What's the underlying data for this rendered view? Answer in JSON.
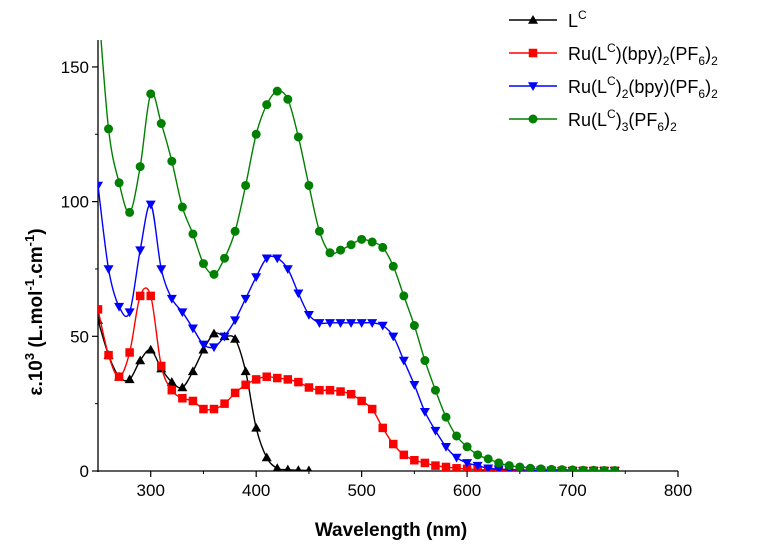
{
  "chart_data": {
    "type": "line",
    "xlabel": "Wavelength (nm)",
    "ylabel_base": "ε.10",
    "ylabel_exp": "3",
    "ylabel_rest": " (L.mol",
    "ylabel_exp2": "-1",
    "ylabel_rest2": ".cm",
    "ylabel_exp3": "-1",
    "ylabel_end": ")",
    "xlim": [
      250,
      800
    ],
    "ylim": [
      0,
      160
    ],
    "xticks": [
      300,
      400,
      500,
      600,
      700,
      800
    ],
    "yticks": [
      0,
      50,
      100,
      150
    ],
    "grid": false,
    "legend_position": "top-right",
    "legend": [
      {
        "parts": [
          [
            "n",
            "L"
          ],
          [
            "sup",
            "C"
          ]
        ]
      },
      {
        "parts": [
          [
            "n",
            "Ru(L"
          ],
          [
            "sup",
            "C"
          ],
          [
            "n",
            ")(bpy)"
          ],
          [
            "sub",
            "2"
          ],
          [
            "n",
            "(PF"
          ],
          [
            "sub",
            "6"
          ],
          [
            "n",
            ")"
          ],
          [
            "sub",
            "2"
          ]
        ]
      },
      {
        "parts": [
          [
            "n",
            "Ru(L"
          ],
          [
            "sup",
            "C"
          ],
          [
            "n",
            ")"
          ],
          [
            "sub",
            "2"
          ],
          [
            "n",
            "(bpy)(PF"
          ],
          [
            "sub",
            "6"
          ],
          [
            "n",
            ")"
          ],
          [
            "sub",
            "2"
          ]
        ]
      },
      {
        "parts": [
          [
            "n",
            "Ru(L"
          ],
          [
            "sup",
            "C"
          ],
          [
            "n",
            ")"
          ],
          [
            "sub",
            "3"
          ],
          [
            "n",
            "(PF"
          ],
          [
            "sub",
            "6"
          ],
          [
            "n",
            ")"
          ],
          [
            "sub",
            "2"
          ]
        ]
      }
    ],
    "series": [
      {
        "color": "#000000",
        "marker": "triangle-up",
        "x": [
          250,
          260,
          270,
          280,
          290,
          300,
          310,
          320,
          330,
          340,
          350,
          360,
          370,
          380,
          390,
          400,
          410,
          420,
          430,
          440,
          450
        ],
        "y": [
          56,
          43,
          35,
          34,
          41,
          45,
          38,
          33,
          31,
          37,
          45,
          51,
          50,
          49,
          37,
          16,
          5,
          1,
          0.5,
          0.3,
          0.2
        ]
      },
      {
        "color": "#ff0000",
        "marker": "square",
        "x": [
          250,
          260,
          270,
          280,
          290,
          300,
          310,
          320,
          330,
          340,
          350,
          360,
          370,
          380,
          390,
          400,
          410,
          420,
          430,
          440,
          450,
          460,
          470,
          480,
          490,
          500,
          510,
          520,
          530,
          540,
          550,
          560,
          570,
          580,
          590,
          600,
          610,
          620,
          630,
          640,
          650,
          660,
          670,
          680,
          690,
          700,
          710,
          720,
          730,
          740
        ],
        "y": [
          60,
          43,
          35,
          44,
          65,
          65,
          39,
          30,
          27,
          26,
          23,
          23,
          25,
          29,
          32,
          34,
          35,
          34.5,
          34,
          33,
          31,
          30,
          30,
          29.5,
          28.5,
          26,
          23,
          16,
          10,
          6,
          4,
          3,
          2,
          1.5,
          1,
          0.8,
          0.5,
          0.4,
          0.3,
          0.2,
          0.2,
          0.2,
          0.2,
          0.1,
          0.1,
          0.1,
          0.1,
          0.1,
          0.1,
          0.1
        ]
      },
      {
        "color": "#0000ff",
        "marker": "triangle-down",
        "x": [
          250,
          260,
          270,
          280,
          290,
          300,
          310,
          320,
          330,
          340,
          350,
          360,
          370,
          380,
          390,
          400,
          410,
          420,
          430,
          440,
          450,
          460,
          470,
          480,
          490,
          500,
          510,
          520,
          530,
          540,
          550,
          560,
          570,
          580,
          590,
          600,
          610,
          620,
          630,
          640,
          650,
          660,
          670,
          680,
          690,
          700,
          710,
          720,
          730,
          740
        ],
        "y": [
          106,
          75,
          61,
          59,
          82,
          99,
          75,
          64,
          59,
          53,
          47,
          46,
          50,
          56,
          64,
          72,
          79,
          79,
          75,
          66,
          58,
          55,
          55,
          55,
          55,
          55,
          55,
          54,
          50,
          41,
          32,
          22,
          15,
          9,
          5,
          3,
          2,
          1,
          0.7,
          0.5,
          0.4,
          0.3,
          0.2,
          0.2,
          0.1,
          0.1,
          0.1,
          0.1,
          0.1,
          0.1
        ]
      },
      {
        "color": "#008000",
        "marker": "circle",
        "x": [
          250,
          260,
          270,
          280,
          290,
          300,
          310,
          320,
          330,
          340,
          350,
          360,
          370,
          380,
          390,
          400,
          410,
          420,
          430,
          440,
          450,
          460,
          470,
          480,
          490,
          500,
          510,
          520,
          530,
          540,
          550,
          560,
          570,
          580,
          590,
          600,
          610,
          620,
          630,
          640,
          650,
          660,
          670,
          680,
          690,
          700,
          710,
          720,
          730,
          740
        ],
        "y": [
          175,
          127,
          107,
          96,
          113,
          140,
          129,
          115,
          98,
          88,
          77,
          73,
          79,
          89,
          106,
          125,
          136,
          141,
          138,
          124,
          106,
          89,
          81,
          82,
          84,
          86,
          85,
          83,
          76,
          65,
          54,
          41,
          30,
          20,
          13,
          9,
          6,
          4.5,
          3,
          2,
          1.5,
          1,
          0.8,
          0.6,
          0.5,
          0.4,
          0.3,
          0.3,
          0.2,
          0.2
        ]
      }
    ]
  }
}
